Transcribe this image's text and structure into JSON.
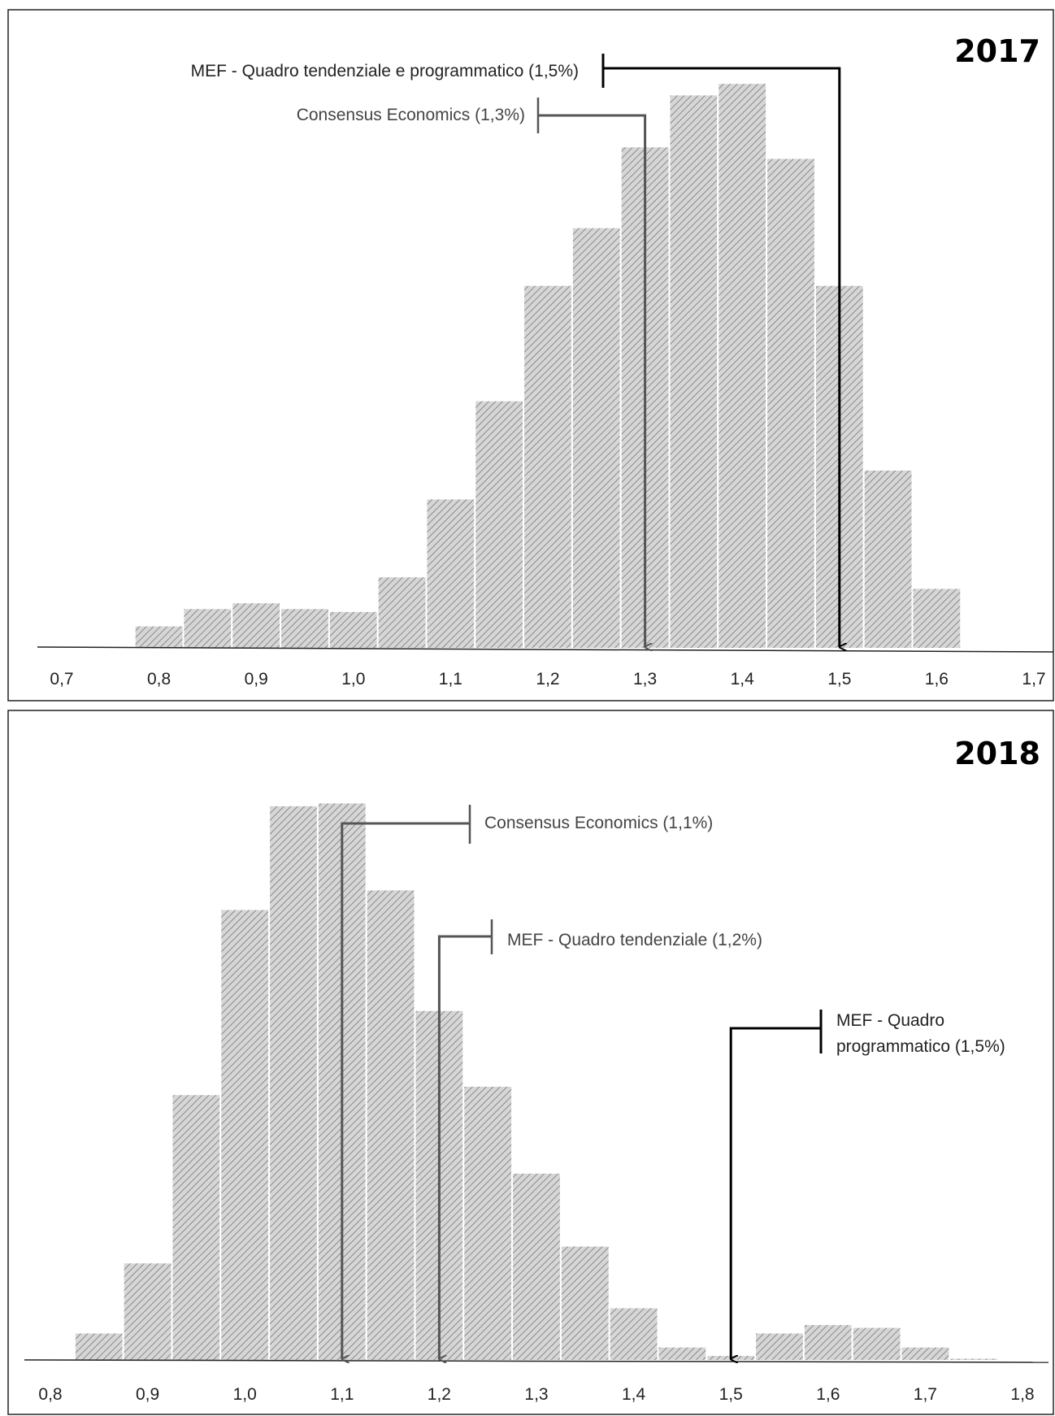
{
  "chart_data": [
    {
      "type": "bar",
      "title": "2017",
      "x_tick_labels": [
        "0,7",
        "0,8",
        "0,9",
        "1,0",
        "1,1",
        "1,2",
        "1,3",
        "1,4",
        "1,5",
        "1,6",
        "1,7"
      ],
      "x_ticks": [
        0.7,
        0.8,
        0.9,
        1.0,
        1.1,
        1.2,
        1.3,
        1.4,
        1.5,
        1.6,
        1.7
      ],
      "xlim": [
        0.675,
        1.75
      ],
      "ylim": [
        0,
        100
      ],
      "bins": [
        {
          "x0": 0.775,
          "x1": 0.825,
          "value": 4
        },
        {
          "x0": 0.825,
          "x1": 0.875,
          "value": 7
        },
        {
          "x0": 0.875,
          "x1": 0.925,
          "value": 8
        },
        {
          "x0": 0.925,
          "x1": 0.975,
          "value": 7
        },
        {
          "x0": 0.975,
          "x1": 1.025,
          "value": 6.5
        },
        {
          "x0": 1.025,
          "x1": 1.075,
          "value": 12.5
        },
        {
          "x0": 1.075,
          "x1": 1.125,
          "value": 26
        },
        {
          "x0": 1.125,
          "x1": 1.175,
          "value": 43
        },
        {
          "x0": 1.175,
          "x1": 1.225,
          "value": 63
        },
        {
          "x0": 1.225,
          "x1": 1.275,
          "value": 73
        },
        {
          "x0": 1.275,
          "x1": 1.325,
          "value": 87
        },
        {
          "x0": 1.325,
          "x1": 1.375,
          "value": 96
        },
        {
          "x0": 1.375,
          "x1": 1.425,
          "value": 98
        },
        {
          "x0": 1.425,
          "x1": 1.475,
          "value": 85
        },
        {
          "x0": 1.475,
          "x1": 1.525,
          "value": 63
        },
        {
          "x0": 1.525,
          "x1": 1.575,
          "value": 31
        },
        {
          "x0": 1.575,
          "x1": 1.625,
          "value": 10.5
        }
      ],
      "annotations": [
        {
          "label": "MEF - Quadro tendenziale e programmatico (1,5%)",
          "value": 1.5,
          "style": "dark"
        },
        {
          "label": "Consensus Economics (1,3%)",
          "value": 1.3,
          "style": "gray"
        }
      ]
    },
    {
      "type": "bar",
      "title": "2018",
      "x_tick_labels": [
        "0,8",
        "0,9",
        "1,0",
        "1,1",
        "1,2",
        "1,3",
        "1,4",
        "1,5",
        "1,6",
        "1,7",
        "1,8"
      ],
      "x_ticks": [
        0.8,
        0.9,
        1.0,
        1.1,
        1.2,
        1.3,
        1.4,
        1.5,
        1.6,
        1.7,
        1.8
      ],
      "xlim": [
        0.775,
        1.85
      ],
      "ylim": [
        0,
        100
      ],
      "bins": [
        {
          "x0": 0.825,
          "x1": 0.875,
          "value": 5
        },
        {
          "x0": 0.875,
          "x1": 0.925,
          "value": 17.5
        },
        {
          "x0": 0.925,
          "x1": 0.975,
          "value": 47.5
        },
        {
          "x0": 0.975,
          "x1": 1.025,
          "value": 80.5
        },
        {
          "x0": 1.025,
          "x1": 1.075,
          "value": 99
        },
        {
          "x0": 1.075,
          "x1": 1.125,
          "value": 99.5
        },
        {
          "x0": 1.125,
          "x1": 1.175,
          "value": 84
        },
        {
          "x0": 1.175,
          "x1": 1.225,
          "value": 62.5
        },
        {
          "x0": 1.225,
          "x1": 1.275,
          "value": 49
        },
        {
          "x0": 1.275,
          "x1": 1.325,
          "value": 33.5
        },
        {
          "x0": 1.325,
          "x1": 1.375,
          "value": 20.5
        },
        {
          "x0": 1.375,
          "x1": 1.425,
          "value": 9.5
        },
        {
          "x0": 1.425,
          "x1": 1.475,
          "value": 2.5
        },
        {
          "x0": 1.475,
          "x1": 1.525,
          "value": 1
        },
        {
          "x0": 1.525,
          "x1": 1.575,
          "value": 5
        },
        {
          "x0": 1.575,
          "x1": 1.625,
          "value": 6.5
        },
        {
          "x0": 1.625,
          "x1": 1.675,
          "value": 6
        },
        {
          "x0": 1.675,
          "x1": 1.725,
          "value": 2.5
        },
        {
          "x0": 1.725,
          "x1": 1.775,
          "value": 0.5
        }
      ],
      "annotations": [
        {
          "label": "Consensus Economics (1,1%)",
          "value": 1.1,
          "style": "gray"
        },
        {
          "label": "MEF - Quadro tendenziale (1,2%)",
          "value": 1.2,
          "style": "gray"
        },
        {
          "label_lines": [
            "MEF - Quadro",
            "programmatico (1,5%)"
          ],
          "value": 1.5,
          "style": "dark"
        }
      ]
    }
  ]
}
